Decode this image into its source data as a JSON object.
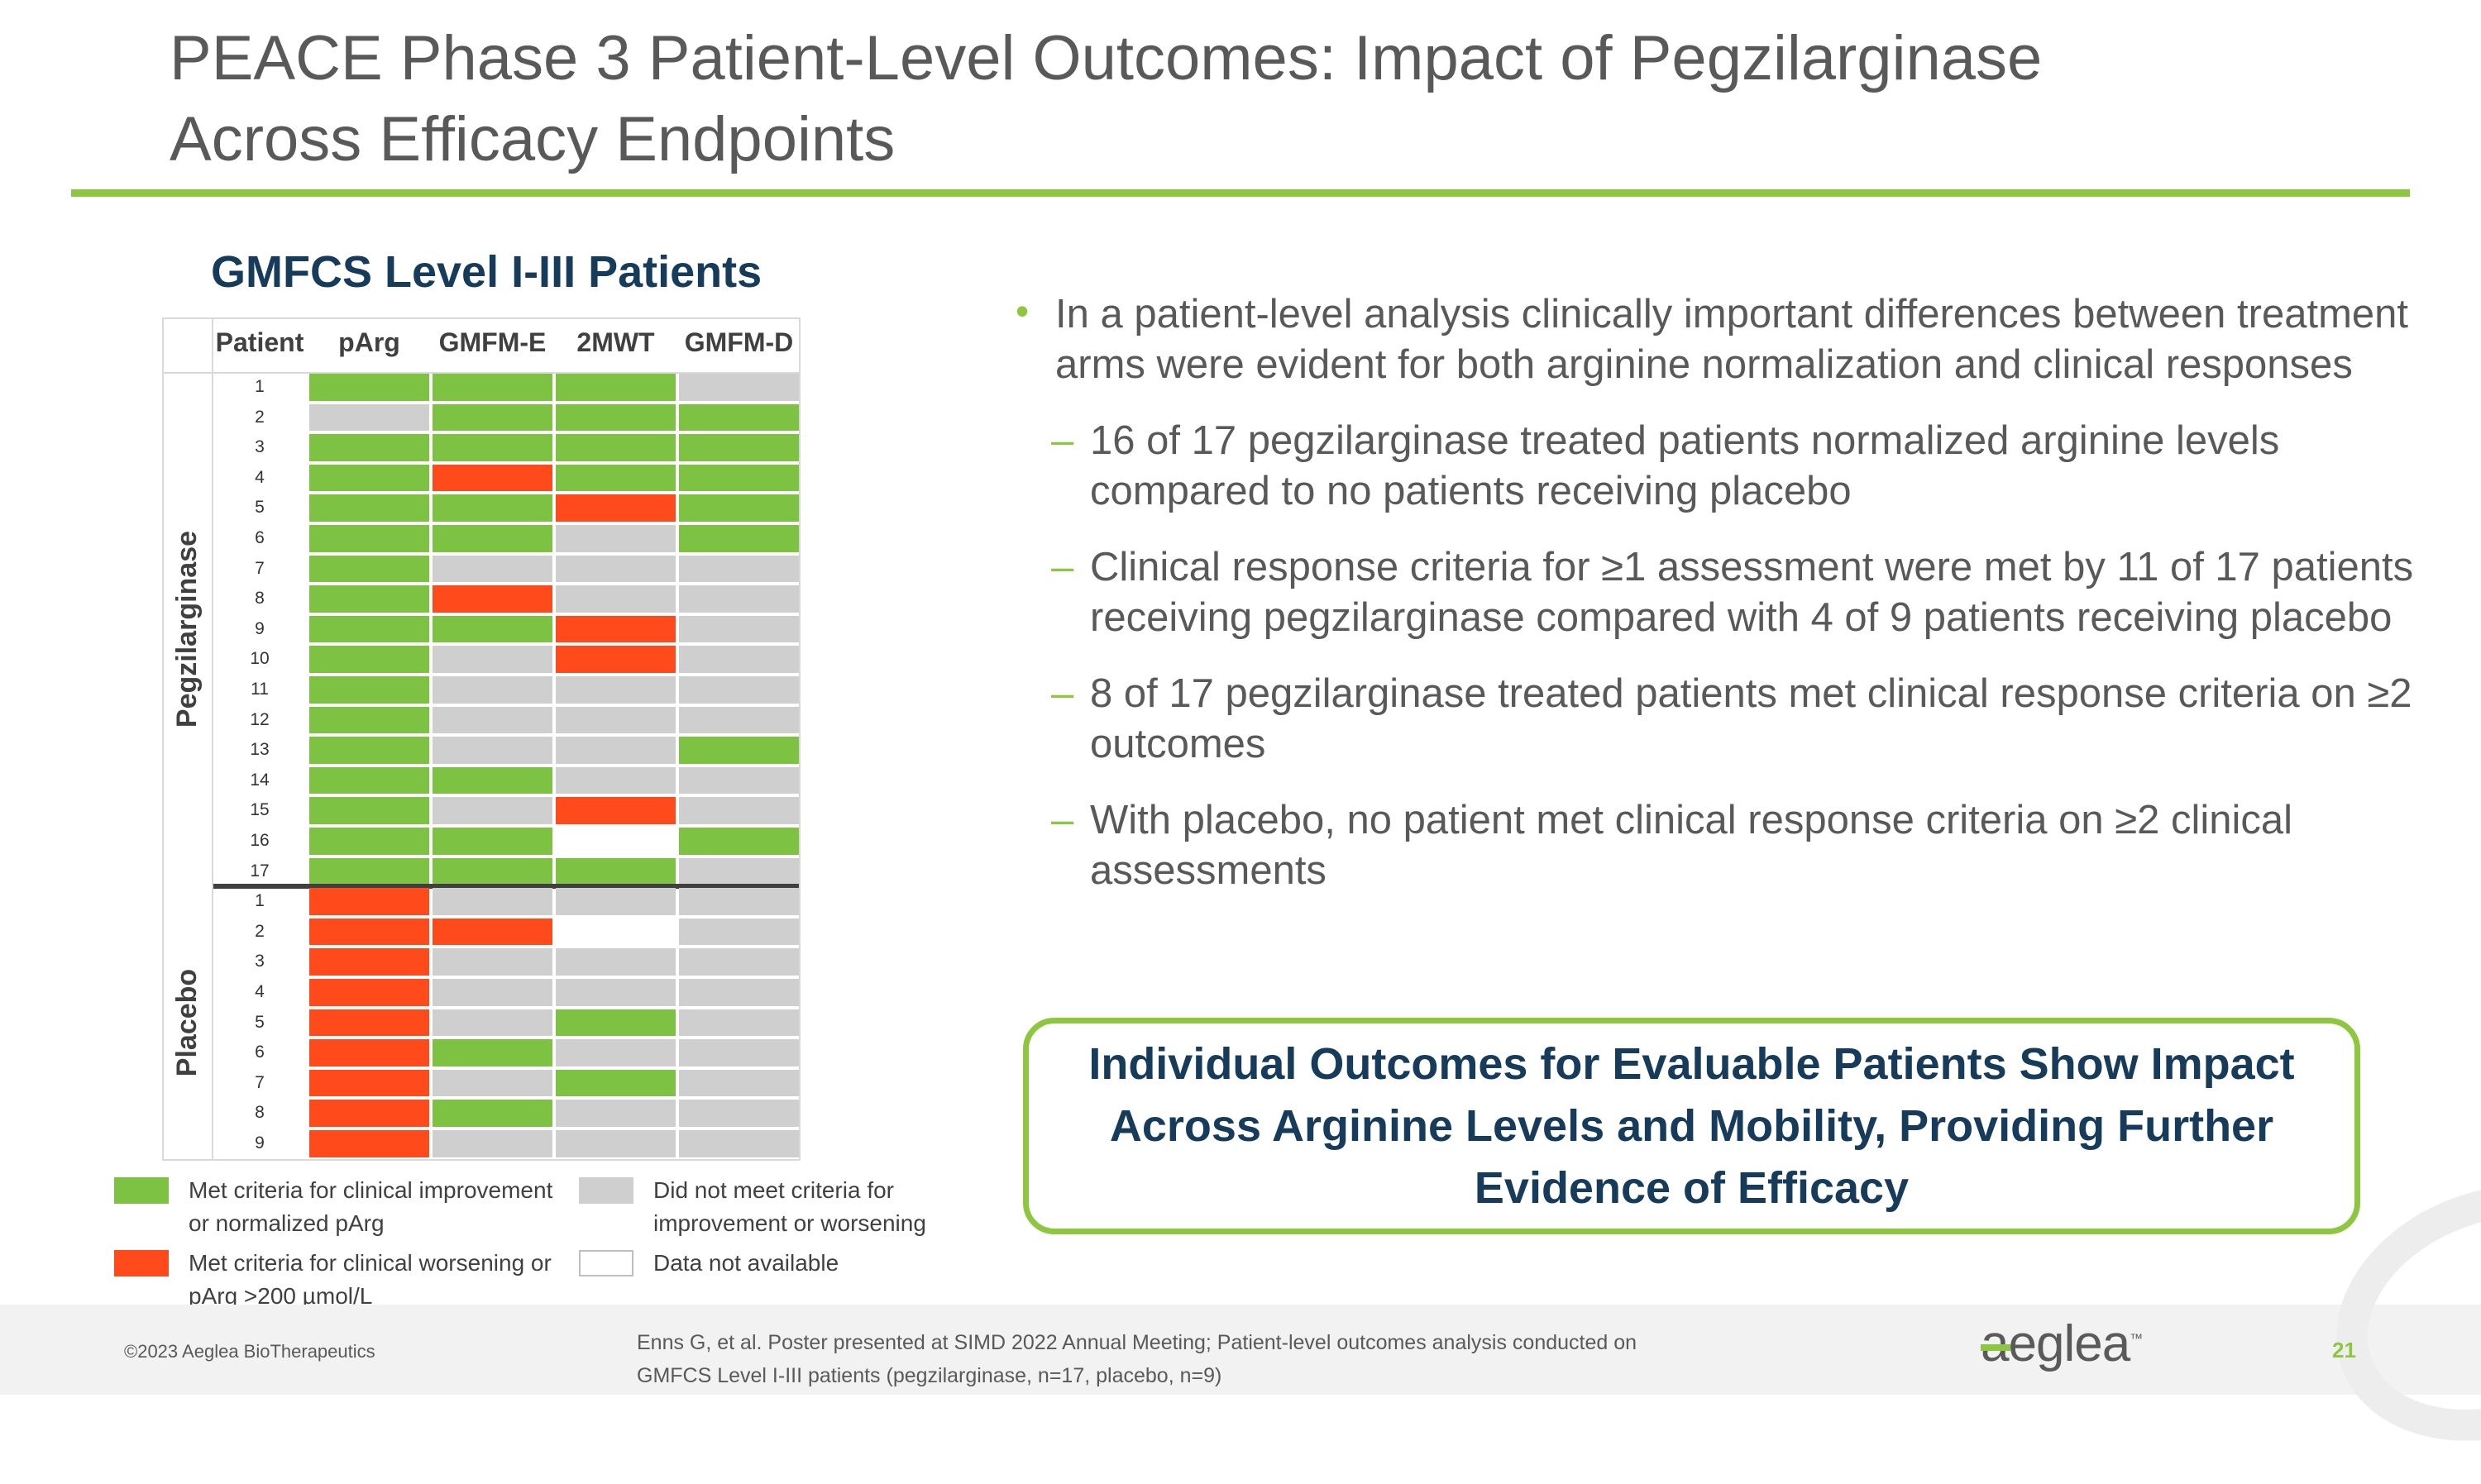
{
  "slide": {
    "title_lines": [
      "PEACE Phase 3 Patient-Level Outcomes: Impact of Pegzilarginase",
      "Across Efficacy Endpoints"
    ],
    "page_number": "21"
  },
  "chart_data": {
    "type": "heatmap",
    "title": "GMFCS Level I-III Patients",
    "row_header": "Patient",
    "columns": [
      "pArg",
      "GMFM-E",
      "2MWT",
      "GMFM-D"
    ],
    "groups": [
      {
        "name": "Pegzilarginase",
        "patients": [
          "1",
          "2",
          "3",
          "4",
          "5",
          "6",
          "7",
          "8",
          "9",
          "10",
          "11",
          "12",
          "13",
          "14",
          "15",
          "16",
          "17"
        ],
        "cells": [
          [
            "met",
            "met",
            "met",
            "not_met"
          ],
          [
            "not_met",
            "met",
            "met",
            "met"
          ],
          [
            "met",
            "met",
            "met",
            "met"
          ],
          [
            "met",
            "worse",
            "met",
            "met"
          ],
          [
            "met",
            "met",
            "worse",
            "met"
          ],
          [
            "met",
            "met",
            "not_met",
            "met"
          ],
          [
            "met",
            "not_met",
            "not_met",
            "not_met"
          ],
          [
            "met",
            "worse",
            "not_met",
            "not_met"
          ],
          [
            "met",
            "met",
            "worse",
            "not_met"
          ],
          [
            "met",
            "not_met",
            "worse",
            "not_met"
          ],
          [
            "met",
            "not_met",
            "not_met",
            "not_met"
          ],
          [
            "met",
            "not_met",
            "not_met",
            "not_met"
          ],
          [
            "met",
            "not_met",
            "not_met",
            "met"
          ],
          [
            "met",
            "met",
            "not_met",
            "not_met"
          ],
          [
            "met",
            "not_met",
            "worse",
            "not_met"
          ],
          [
            "met",
            "met",
            "na",
            "met"
          ],
          [
            "met",
            "met",
            "met",
            "not_met"
          ]
        ]
      },
      {
        "name": "Placebo",
        "patients": [
          "1",
          "2",
          "3",
          "4",
          "5",
          "6",
          "7",
          "8",
          "9"
        ],
        "cells": [
          [
            "worse",
            "not_met",
            "not_met",
            "not_met"
          ],
          [
            "worse",
            "worse",
            "na",
            "not_met"
          ],
          [
            "worse",
            "not_met",
            "not_met",
            "not_met"
          ],
          [
            "worse",
            "not_met",
            "not_met",
            "not_met"
          ],
          [
            "worse",
            "not_met",
            "met",
            "not_met"
          ],
          [
            "worse",
            "met",
            "not_met",
            "not_met"
          ],
          [
            "worse",
            "not_met",
            "met",
            "not_met"
          ],
          [
            "worse",
            "met",
            "not_met",
            "not_met"
          ],
          [
            "worse",
            "not_met",
            "not_met",
            "not_met"
          ]
        ]
      }
    ],
    "colors": {
      "met": "#7dc242",
      "worse": "#ff4a1c",
      "not_met": "#cfcfcf",
      "na": "#ffffff"
    },
    "legend": [
      {
        "key": "met",
        "label": "Met criteria for clinical improvement or normalized pArg"
      },
      {
        "key": "not_met",
        "label": "Did not meet criteria for improvement or worsening"
      },
      {
        "key": "worse",
        "label": "Met criteria for clinical worsening or pArg >200 µmol/L"
      },
      {
        "key": "na",
        "label": "Data not available"
      }
    ]
  },
  "bullets": {
    "main": "In a patient-level analysis clinically important differences between treatment arms were evident for both arginine normalization and clinical responses",
    "subs": [
      "16 of 17 pegzilarginase treated patients normalized arginine levels compared to no patients receiving placebo",
      "Clinical response criteria for ≥1 assessment were met by 11 of 17 patients receiving pegzilarginase compared with 4 of 9 patients receiving placebo",
      "8 of 17 pegzilarginase treated patients met clinical response criteria on ≥2 outcomes",
      "With placebo, no patient met clinical response criteria on ≥2 clinical assessments"
    ],
    "sub_marker": "–",
    "main_marker": "•"
  },
  "callout": "Individual Outcomes for Evaluable Patients Show Impact Across Arginine Levels and Mobility, Providing Further Evidence of Efficacy",
  "footer": {
    "copyright": "©2023 Aeglea BioTherapeutics",
    "citation": "Enns G, et al. Poster presented at SIMD 2022 Annual Meeting; Patient-level outcomes analysis conducted on GMFCS Level I-III patients (pegzilarginase, n=17, placebo, n=9)",
    "logo": "aeglea",
    "logo_tm": "™"
  }
}
